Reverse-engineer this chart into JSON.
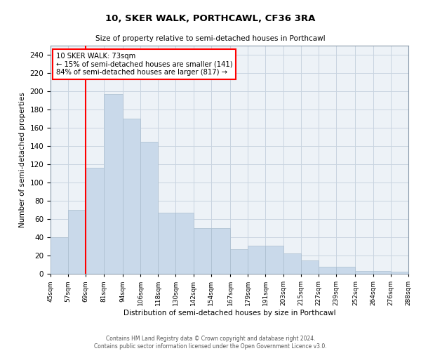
{
  "title": "10, SKER WALK, PORTHCAWL, CF36 3RA",
  "subtitle": "Size of property relative to semi-detached houses in Porthcawl",
  "xlabel": "Distribution of semi-detached houses by size in Porthcawl",
  "ylabel": "Number of semi-detached properties",
  "bar_color": "#c9d9ea",
  "bar_edge_color": "#aabdce",
  "vline_x": 69,
  "vline_color": "red",
  "annotation_text": "10 SKER WALK: 73sqm\n← 15% of semi-detached houses are smaller (141)\n84% of semi-detached houses are larger (817) →",
  "annotation_box_color": "white",
  "annotation_box_edge_color": "red",
  "bins": [
    45,
    57,
    69,
    81,
    94,
    106,
    118,
    130,
    142,
    154,
    167,
    179,
    191,
    203,
    215,
    227,
    239,
    252,
    264,
    276,
    288
  ],
  "values": [
    40,
    70,
    116,
    197,
    170,
    145,
    67,
    67,
    50,
    50,
    27,
    31,
    31,
    22,
    15,
    8,
    8,
    3,
    3,
    2,
    0
  ],
  "ylim": [
    0,
    250
  ],
  "yticks": [
    0,
    20,
    40,
    60,
    80,
    100,
    120,
    140,
    160,
    180,
    200,
    220,
    240
  ],
  "footer1": "Contains HM Land Registry data © Crown copyright and database right 2024.",
  "footer2": "Contains public sector information licensed under the Open Government Licence v3.0.",
  "background_color": "#edf2f7",
  "grid_color": "#c8d4e0"
}
